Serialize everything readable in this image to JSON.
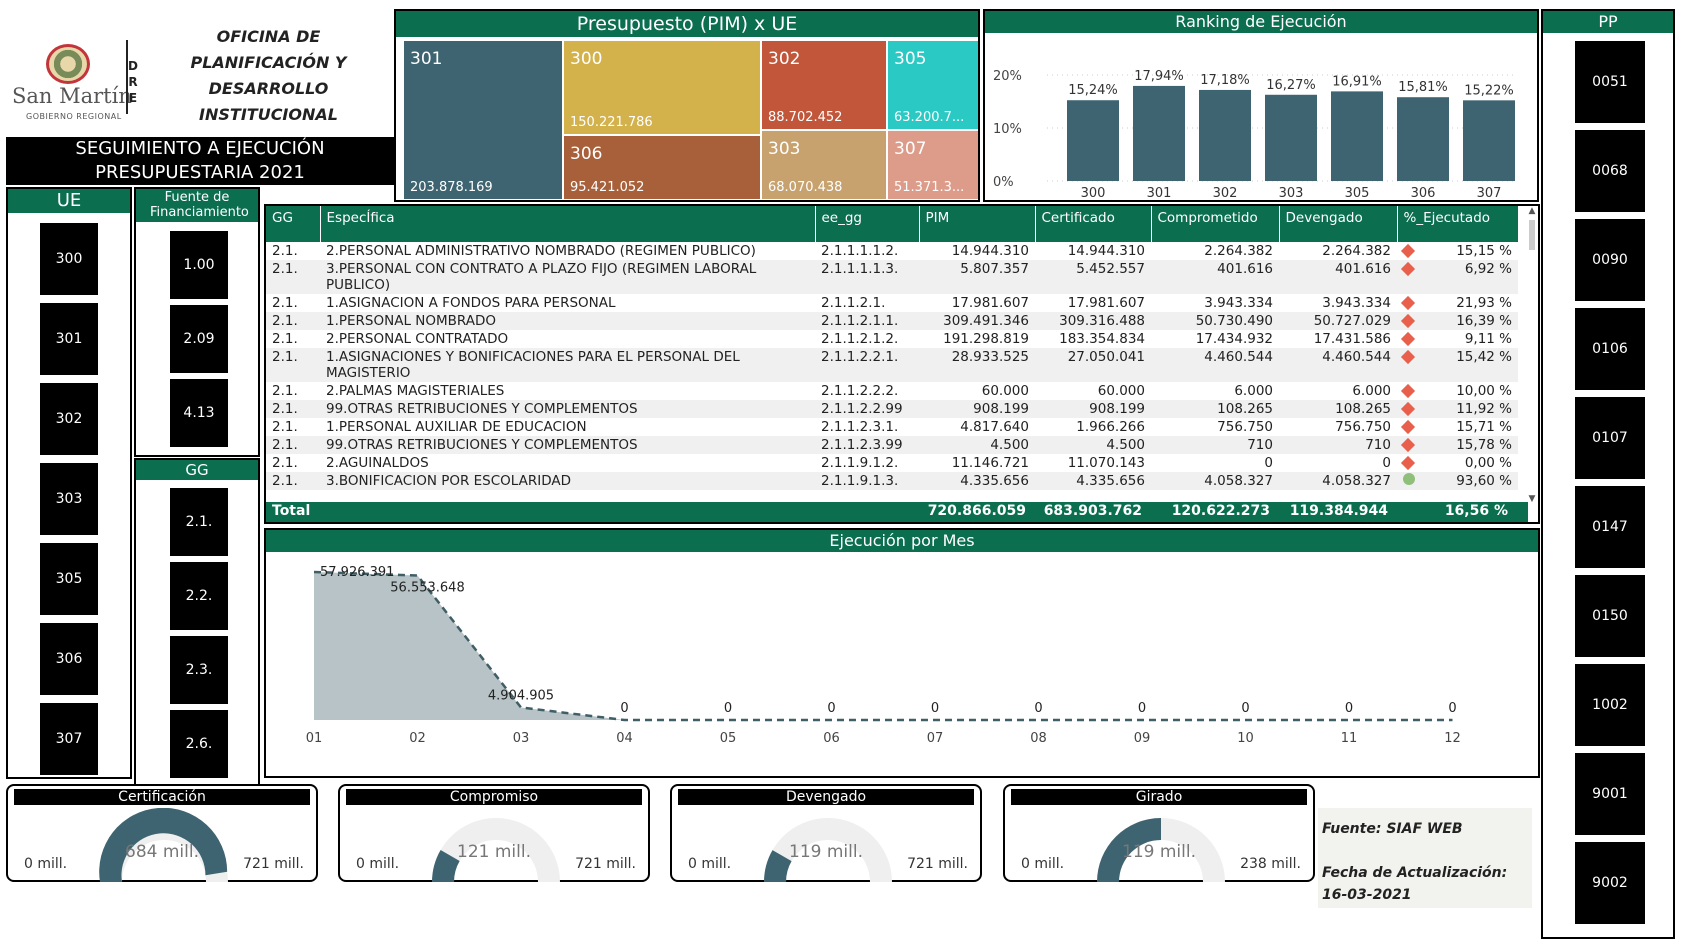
{
  "header": {
    "office_title": "OFICINA DE PLANIFICACIÓN Y DESARROLLO INSTITUCIONAL",
    "dre": [
      "D",
      "R",
      "E"
    ],
    "brand_name": "San Martín",
    "brand_sub": "GOBIERNO REGIONAL",
    "subtitle_line1": "SEGUIMIENTO A EJECUCIÓN",
    "subtitle_line2": "PRESUPUESTARIA 2021"
  },
  "slicers": {
    "ue": {
      "title": "UE",
      "items": [
        "300",
        "301",
        "302",
        "303",
        "305",
        "306",
        "307"
      ]
    },
    "fuente": {
      "title": "Fuente de Financiamiento",
      "items": [
        "1.00",
        "2.09",
        "4.13"
      ]
    },
    "gg": {
      "title": "GG",
      "items": [
        "2.1.",
        "2.2.",
        "2.3.",
        "2.6."
      ]
    },
    "pp": {
      "title": "PP",
      "items": [
        "0051",
        "0068",
        "0090",
        "0106",
        "0107",
        "0147",
        "0150",
        "1002",
        "9001",
        "9002"
      ]
    }
  },
  "treemap": {
    "title": "Presupuesto (PIM) x UE",
    "cells": [
      {
        "label": "301",
        "value": "203.878.169",
        "color": "#3f6471"
      },
      {
        "label": "300",
        "value": "150.221.786",
        "color": "#d3b14b"
      },
      {
        "label": "306",
        "value": "95.421.052",
        "color": "#a7603a"
      },
      {
        "label": "302",
        "value": "88.702.452",
        "color": "#c1563a"
      },
      {
        "label": "303",
        "value": "68.070.438",
        "color": "#c7a26e"
      },
      {
        "label": "305",
        "value": "63.200.7...",
        "color": "#2bc9c4"
      },
      {
        "label": "307",
        "value": "51.371.3...",
        "color": "#dd9b89"
      }
    ]
  },
  "ranking": {
    "title": "Ranking de Ejecución",
    "y_ticks": [
      "20%",
      "10%",
      "0%"
    ]
  },
  "chart_data": [
    {
      "type": "bar",
      "title": "Ranking de Ejecución",
      "categories": [
        "300",
        "301",
        "302",
        "303",
        "305",
        "306",
        "307"
      ],
      "values": [
        15.24,
        17.94,
        17.18,
        16.27,
        16.91,
        15.81,
        15.22
      ],
      "labels": [
        "15,24%",
        "17,94%",
        "17,18%",
        "16,27%",
        "16,91%",
        "15,81%",
        "15,22%"
      ],
      "ylim": [
        0,
        20
      ],
      "color": "#3f6471"
    },
    {
      "type": "area",
      "title": "Ejecución por Mes",
      "categories": [
        "01",
        "02",
        "03",
        "04",
        "05",
        "06",
        "07",
        "08",
        "09",
        "10",
        "11",
        "12"
      ],
      "values": [
        57926391,
        56553648,
        4904905,
        0,
        0,
        0,
        0,
        0,
        0,
        0,
        0,
        0
      ],
      "labels": [
        "57.926.391",
        "56.553.648",
        "4.904.905",
        "0",
        "0",
        "0",
        "0",
        "0",
        "0",
        "0",
        "0",
        "0"
      ],
      "color": "#b7c3c6"
    }
  ],
  "table": {
    "columns": [
      "GG",
      "EspecÍfica",
      "ee_gg",
      "PIM",
      "Certificado",
      "Comprometido",
      "Devengado",
      "%_Ejecutado"
    ],
    "rows": [
      [
        "2.1.",
        "2.PERSONAL ADMINISTRATIVO NOMBRADO (REGIMEN PUBLICO)",
        "2.1.1.1.1.2.",
        "14.944.310",
        "14.944.310",
        "2.264.382",
        "2.264.382",
        "15,15 %"
      ],
      [
        "2.1.",
        "3.PERSONAL CON CONTRATO A PLAZO FIJO (REGIMEN LABORAL PUBLICO)",
        "2.1.1.1.1.3.",
        "5.807.357",
        "5.452.557",
        "401.616",
        "401.616",
        "6,92 %"
      ],
      [
        "2.1.",
        "1.ASIGNACION A FONDOS PARA PERSONAL",
        "2.1.1.2.1.",
        "17.981.607",
        "17.981.607",
        "3.943.334",
        "3.943.334",
        "21,93 %"
      ],
      [
        "2.1.",
        "1.PERSONAL NOMBRADO",
        "2.1.1.2.1.1.",
        "309.491.346",
        "309.316.488",
        "50.730.490",
        "50.727.029",
        "16,39 %"
      ],
      [
        "2.1.",
        "2.PERSONAL CONTRATADO",
        "2.1.1.2.1.2.",
        "191.298.819",
        "183.354.834",
        "17.434.932",
        "17.431.586",
        "9,11 %"
      ],
      [
        "2.1.",
        "1.ASIGNACIONES Y BONIFICACIONES PARA EL PERSONAL DEL MAGISTERIO",
        "2.1.1.2.2.1.",
        "28.933.525",
        "27.050.041",
        "4.460.544",
        "4.460.544",
        "15,42 %"
      ],
      [
        "2.1.",
        "2.PALMAS MAGISTERIALES",
        "2.1.1.2.2.2.",
        "60.000",
        "60.000",
        "6.000",
        "6.000",
        "10,00 %"
      ],
      [
        "2.1.",
        "99.OTRAS RETRIBUCIONES Y COMPLEMENTOS",
        "2.1.1.2.2.99",
        "908.199",
        "908.199",
        "108.265",
        "108.265",
        "11,92 %"
      ],
      [
        "2.1.",
        "1.PERSONAL AUXILIAR DE EDUCACION",
        "2.1.1.2.3.1.",
        "4.817.640",
        "1.966.266",
        "756.750",
        "756.750",
        "15,71 %"
      ],
      [
        "2.1.",
        "99.OTRAS RETRIBUCIONES Y COMPLEMENTOS",
        "2.1.1.2.3.99",
        "4.500",
        "4.500",
        "710",
        "710",
        "15,78 %"
      ],
      [
        "2.1.",
        "2.AGUINALDOS",
        "2.1.1.9.1.2.",
        "11.146.721",
        "11.070.143",
        "0",
        "0",
        "0,00 %"
      ],
      [
        "2.1.",
        "3.BONIFICACION POR ESCOLARIDAD",
        "2.1.1.9.1.3.",
        "4.335.656",
        "4.335.656",
        "4.058.327",
        "4.058.327",
        "93,60 %"
      ]
    ],
    "total": {
      "label": "Total",
      "pim": "720.866.059",
      "certificado": "683.903.762",
      "comprometido": "120.622.273",
      "devengado": "119.384.944",
      "ejecutado": "16,56 %"
    }
  },
  "monthly": {
    "title": "Ejecución por Mes"
  },
  "gauges": [
    {
      "title": "Certificación",
      "min": "0 mill.",
      "max": "721 mill.",
      "value": "684 mill.",
      "fraction": 0.949
    },
    {
      "title": "Compromiso",
      "min": "0 mill.",
      "max": "721 mill.",
      "value": "121 mill.",
      "fraction": 0.167
    },
    {
      "title": "Devengado",
      "min": "0 mill.",
      "max": "721 mill.",
      "value": "119 mill.",
      "fraction": 0.166
    },
    {
      "title": "Girado",
      "min": "0 mill.",
      "max": "238 mill.",
      "value": "119 mill.",
      "fraction": 0.5
    }
  ],
  "source": {
    "fuente": "Fuente: SIAF WEB",
    "fecha_label": "Fecha de Actualización:",
    "fecha": "16-03-2021"
  },
  "colors": {
    "accent": "#0b6e4f",
    "bar": "#3f6471",
    "diamond": "#e8604c"
  }
}
